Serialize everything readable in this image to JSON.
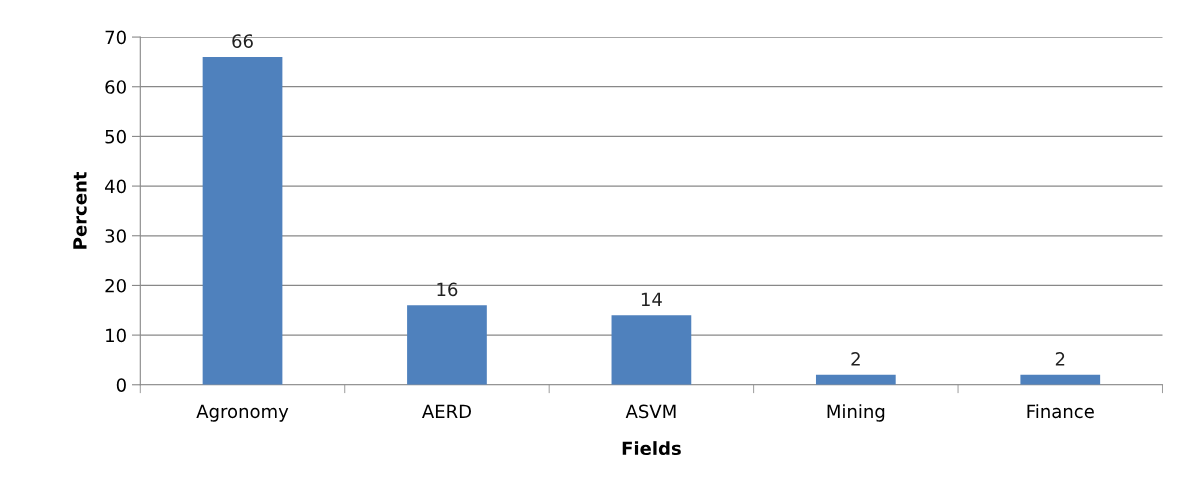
{
  "chart_data": {
    "type": "bar",
    "xlabel": "Fields",
    "ylabel": "Percent",
    "categories": [
      "Agronomy",
      "AERD",
      "ASVM",
      "Mining",
      "Finance"
    ],
    "values": [
      66,
      16,
      14,
      2,
      2
    ],
    "color": "#4f81bd",
    "ylim": [
      0,
      70
    ],
    "yticks": [
      0,
      10,
      20,
      30,
      40,
      50,
      60,
      70
    ],
    "grid": "y",
    "data_labels": true,
    "legend": false
  }
}
